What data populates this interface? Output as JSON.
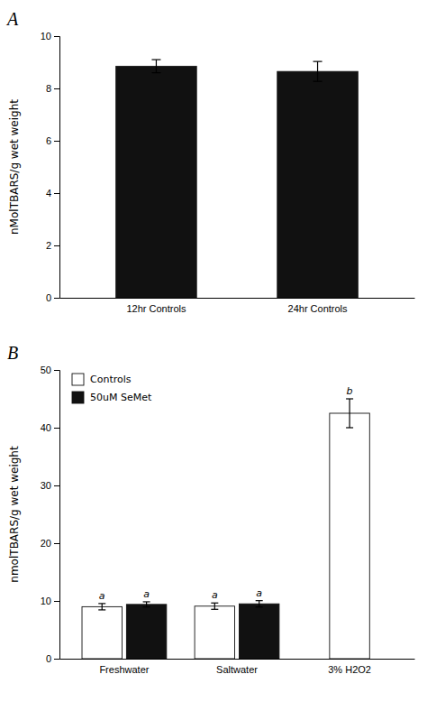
{
  "chart_data": [
    {
      "type": "bar",
      "title": "A",
      "categories": [
        "12hr Controls",
        "24hr Controls"
      ],
      "values": [
        8.85,
        8.65
      ],
      "errors": [
        0.25,
        0.38
      ],
      "color": "#111111",
      "ylim": [
        0,
        10
      ],
      "yticks": [
        0,
        2,
        4,
        6,
        8,
        10
      ],
      "ylabel": "nMolTBARS/g wet weight"
    },
    {
      "type": "bar",
      "title": "B",
      "categories": [
        "Freshwater",
        "Saltwater",
        "3% H2O2"
      ],
      "series": [
        {
          "name": "Controls",
          "color": "#ffffff",
          "values": [
            9.0,
            9.1,
            42.5
          ],
          "errors": [
            0.55,
            0.55,
            2.5
          ],
          "annotations": [
            "a",
            "a",
            "b"
          ]
        },
        {
          "name": "50uM SeMet",
          "color": "#111111",
          "values": [
            9.4,
            9.5,
            null
          ],
          "errors": [
            0.45,
            0.55,
            null
          ],
          "annotations": [
            "a",
            "a",
            null
          ]
        }
      ],
      "ylim": [
        0,
        50
      ],
      "yticks": [
        0,
        10,
        20,
        30,
        40,
        50
      ],
      "ylabel": "nmolTBARS/g wet weight",
      "legend": "top-left"
    }
  ]
}
